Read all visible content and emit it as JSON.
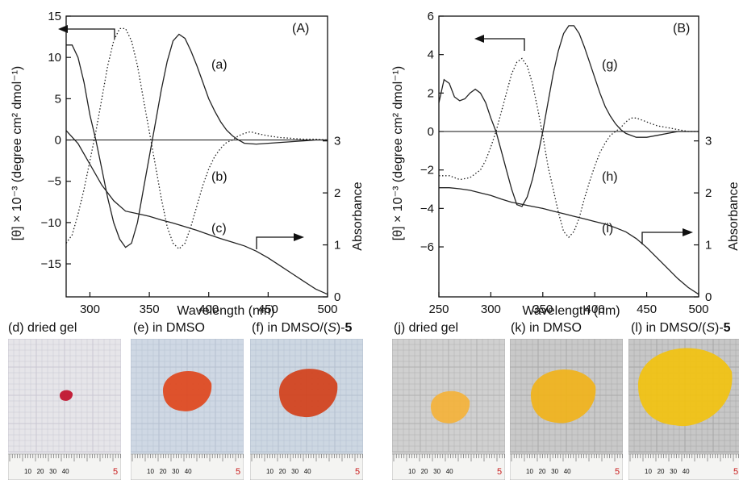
{
  "chart_data": [
    {
      "type": "line",
      "panel_label": "(A)",
      "xlabel": "Wavelength (nm)",
      "ylabel_left": "[θ] × 10⁻³ (degree cm² dmol⁻¹)",
      "ylabel_right": "Absorbance",
      "xlim": [
        280,
        500
      ],
      "ylim_left": [
        -19,
        15
      ],
      "ylim_right": [
        0,
        5.4
      ],
      "x_ticks": [
        "300",
        "350",
        "400",
        "450",
        "500"
      ],
      "y_ticks_left": [
        "15",
        "10",
        "5",
        "0",
        "−5",
        "−10",
        "−15"
      ],
      "y_ticks_right": [
        "0",
        "1",
        "2",
        "3"
      ],
      "series": [
        {
          "name": "(a)",
          "axis": "left",
          "style": "solid",
          "x": [
            280,
            285,
            290,
            295,
            300,
            305,
            310,
            315,
            320,
            325,
            330,
            335,
            340,
            345,
            350,
            355,
            360,
            365,
            370,
            375,
            380,
            385,
            390,
            395,
            400,
            405,
            410,
            415,
            420,
            425,
            430,
            440,
            450,
            460,
            470,
            480,
            490,
            500
          ],
          "y": [
            11.5,
            11.5,
            10,
            7,
            3,
            0,
            -3.5,
            -7,
            -10,
            -12,
            -13,
            -12.5,
            -10,
            -6,
            -2,
            2,
            6,
            9.5,
            12,
            12.8,
            12.3,
            10.8,
            9,
            7,
            5,
            3.5,
            2.2,
            1.2,
            0.5,
            0,
            -0.4,
            -0.5,
            -0.4,
            -0.3,
            -0.2,
            -0.1,
            0,
            0
          ]
        },
        {
          "name": "(b)",
          "axis": "left",
          "style": "dotted",
          "x": [
            280,
            285,
            290,
            295,
            300,
            305,
            310,
            315,
            320,
            325,
            330,
            335,
            340,
            345,
            350,
            355,
            360,
            365,
            370,
            375,
            380,
            385,
            390,
            395,
            400,
            405,
            410,
            415,
            420,
            425,
            430,
            435,
            440,
            450,
            460,
            470,
            480,
            490,
            500
          ],
          "y": [
            -12.5,
            -11.5,
            -9,
            -6,
            -2.5,
            1,
            5,
            9,
            12,
            13.5,
            13.5,
            12,
            9,
            5,
            1,
            -3,
            -7,
            -10.5,
            -12.5,
            -13.2,
            -12.5,
            -10.5,
            -8,
            -5.5,
            -3.5,
            -2,
            -1,
            -0.3,
            0,
            0.5,
            0.8,
            1,
            0.8,
            0.5,
            0.3,
            0.2,
            0.1,
            0.1,
            0
          ]
        },
        {
          "name": "(c)",
          "axis": "right",
          "style": "solid",
          "x": [
            280,
            290,
            300,
            310,
            320,
            330,
            340,
            350,
            360,
            370,
            380,
            390,
            400,
            410,
            420,
            430,
            440,
            450,
            460,
            470,
            480,
            490,
            500
          ],
          "y": [
            3.2,
            2.95,
            2.55,
            2.15,
            1.85,
            1.65,
            1.6,
            1.55,
            1.48,
            1.42,
            1.35,
            1.28,
            1.2,
            1.12,
            1.05,
            0.98,
            0.88,
            0.75,
            0.6,
            0.45,
            0.3,
            0.15,
            0.05
          ]
        }
      ],
      "curve_labels": [
        "(a)",
        "(b)",
        "(c)"
      ]
    },
    {
      "type": "line",
      "panel_label": "(B)",
      "xlabel": "Wavelength (nm)",
      "ylabel_left": "[θ] × 10⁻³ (degree cm² dmol⁻¹)",
      "ylabel_right": "Absorbance",
      "xlim": [
        250,
        500
      ],
      "ylim_left": [
        -8.6,
        6
      ],
      "ylim_right": [
        0,
        5.4
      ],
      "x_ticks": [
        "250",
        "300",
        "350",
        "400",
        "450",
        "500"
      ],
      "y_ticks_left": [
        "6",
        "4",
        "2",
        "0",
        "−2",
        "−4",
        "−6"
      ],
      "y_ticks_right": [
        "0",
        "1",
        "2",
        "3"
      ],
      "series": [
        {
          "name": "(g)",
          "axis": "left",
          "style": "solid",
          "x": [
            250,
            255,
            260,
            265,
            270,
            275,
            280,
            285,
            290,
            295,
            300,
            305,
            310,
            315,
            320,
            325,
            330,
            335,
            340,
            345,
            350,
            355,
            360,
            365,
            370,
            375,
            380,
            385,
            390,
            395,
            400,
            405,
            410,
            415,
            420,
            425,
            430,
            440,
            450,
            460,
            470,
            480,
            490,
            500
          ],
          "y": [
            1.5,
            2.7,
            2.5,
            1.8,
            1.6,
            1.7,
            2.0,
            2.2,
            2.0,
            1.5,
            0.7,
            0,
            -1,
            -2,
            -3,
            -3.8,
            -3.9,
            -3.4,
            -2.5,
            -1.3,
            0,
            1.5,
            3,
            4.2,
            5.1,
            5.5,
            5.5,
            5.1,
            4.4,
            3.6,
            2.8,
            2.0,
            1.3,
            0.8,
            0.4,
            0.1,
            -0.1,
            -0.3,
            -0.3,
            -0.2,
            -0.1,
            0,
            0,
            0
          ]
        },
        {
          "name": "(h)",
          "axis": "left",
          "style": "dotted",
          "x": [
            250,
            260,
            270,
            280,
            290,
            295,
            300,
            305,
            310,
            315,
            320,
            325,
            330,
            335,
            340,
            345,
            350,
            355,
            360,
            365,
            370,
            375,
            380,
            385,
            390,
            395,
            400,
            405,
            410,
            415,
            420,
            425,
            430,
            435,
            440,
            445,
            450,
            460,
            470,
            480,
            490,
            500
          ],
          "y": [
            -2.3,
            -2.3,
            -2.5,
            -2.4,
            -2.0,
            -1.5,
            -0.8,
            0,
            1,
            2,
            3,
            3.6,
            3.8,
            3.4,
            2.5,
            1.2,
            -0.2,
            -1.8,
            -3,
            -4.2,
            -5.2,
            -5.5,
            -5.2,
            -4.5,
            -3.5,
            -2.6,
            -1.8,
            -1.1,
            -0.6,
            -0.2,
            0,
            0.2,
            0.5,
            0.7,
            0.7,
            0.6,
            0.5,
            0.3,
            0.2,
            0.1,
            0,
            0
          ]
        },
        {
          "name": "(i)",
          "axis": "right",
          "style": "solid",
          "x": [
            250,
            260,
            270,
            280,
            290,
            300,
            310,
            320,
            330,
            340,
            350,
            360,
            370,
            380,
            390,
            400,
            410,
            420,
            430,
            440,
            450,
            460,
            470,
            480,
            490,
            500
          ],
          "y": [
            2.1,
            2.1,
            2.08,
            2.05,
            2.0,
            1.95,
            1.88,
            1.82,
            1.78,
            1.74,
            1.7,
            1.65,
            1.6,
            1.55,
            1.5,
            1.45,
            1.4,
            1.33,
            1.25,
            1.12,
            0.95,
            0.75,
            0.55,
            0.35,
            0.18,
            0.05
          ]
        }
      ],
      "curve_labels": [
        "(g)",
        "(h)",
        "(i)"
      ]
    }
  ],
  "photos": [
    {
      "label": "(d)  dried gel",
      "bg": "#e6e5e9",
      "grid": "#c9c8d2",
      "blob": "#c0102a",
      "ruler_text": "10   20   30   40",
      "ruler_mark": "5"
    },
    {
      "label": "(e)  in DMSO",
      "bg": "#cfd8e4",
      "grid": "#b5c0d0",
      "blob": "#e0461c",
      "ruler_text": "10   20   30   40",
      "ruler_mark": "5"
    },
    {
      "label_prefix": "(f) in DMSO/(",
      "label_italic": "S",
      "label_suffix": ")-",
      "label_bold": "5",
      "bg": "#cdd7e2",
      "grid": "#b3bfcf",
      "blob": "#d2401a",
      "ruler_text": "10   20   30   40",
      "ruler_mark": "5"
    },
    {
      "label": "(j)  dried gel",
      "bg": "#d0d0d0",
      "grid": "#b0b0b0",
      "blob": "#f4b23a",
      "ruler_text": "10   20   30   40",
      "ruler_mark": "5"
    },
    {
      "label": "(k)  in DMSO",
      "bg": "#c9c9c9",
      "grid": "#a9a9a9",
      "blob": "#f1b31a",
      "ruler_text": "10   20   30   40",
      "ruler_mark": "5"
    },
    {
      "label_prefix": "(l) in DMSO/(",
      "label_italic": "S",
      "label_suffix": ")-",
      "label_bold": "5",
      "bg": "#c7c7c7",
      "grid": "#a6a6a6",
      "blob": "#f2c20f",
      "ruler_text": "10   20   30   40",
      "ruler_mark": "5"
    }
  ]
}
